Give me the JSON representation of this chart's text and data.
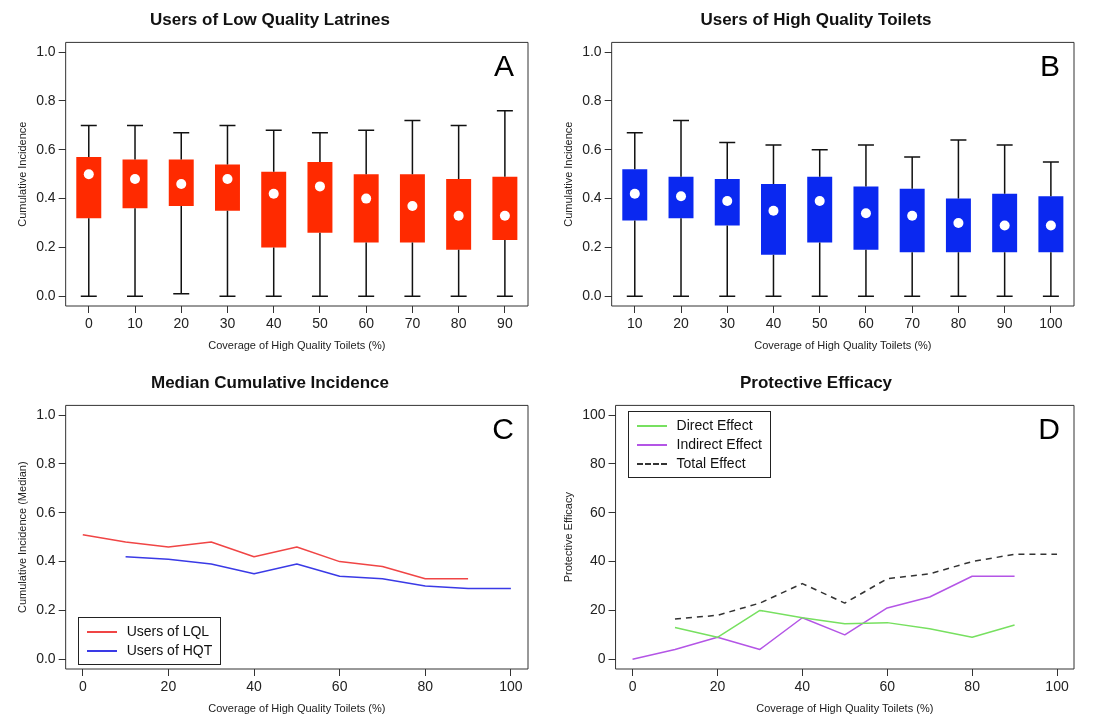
{
  "chart_data": [
    {
      "type": "box",
      "title": "Users of Low Quality Latrines",
      "xlabel": "Coverage of High Quality Toilets (%)",
      "ylabel": "Cumulative Incidence",
      "annotations": [
        "A"
      ],
      "categories": [
        "0",
        "10",
        "20",
        "30",
        "40",
        "50",
        "60",
        "70",
        "80",
        "90"
      ],
      "color": "#ff2a00",
      "grid": false,
      "legend": false,
      "ylim": [
        -0.04,
        1.04
      ],
      "yticks": [
        {
          "value": 0,
          "label": "0.0"
        },
        {
          "value": 0.2,
          "label": "0.2"
        },
        {
          "value": 0.4,
          "label": "0.4"
        },
        {
          "value": 0.6,
          "label": "0.6"
        },
        {
          "value": 0.8,
          "label": "0.8"
        },
        {
          "value": 1,
          "label": "1.0"
        }
      ],
      "boxes": [
        {
          "low": 0,
          "q1": 0.32,
          "median": 0.5,
          "q3": 0.57,
          "high": 0.7
        },
        {
          "low": 0,
          "q1": 0.36,
          "median": 0.48,
          "q3": 0.56,
          "high": 0.7
        },
        {
          "low": 0.01,
          "q1": 0.37,
          "median": 0.46,
          "q3": 0.56,
          "high": 0.67
        },
        {
          "low": 0,
          "q1": 0.35,
          "median": 0.48,
          "q3": 0.54,
          "high": 0.7
        },
        {
          "low": 0,
          "q1": 0.2,
          "median": 0.42,
          "q3": 0.51,
          "high": 0.68
        },
        {
          "low": 0,
          "q1": 0.26,
          "median": 0.45,
          "q3": 0.55,
          "high": 0.67
        },
        {
          "low": 0,
          "q1": 0.22,
          "median": 0.4,
          "q3": 0.5,
          "high": 0.68
        },
        {
          "low": 0,
          "q1": 0.22,
          "median": 0.37,
          "q3": 0.5,
          "high": 0.72
        },
        {
          "low": 0,
          "q1": 0.19,
          "median": 0.33,
          "q3": 0.48,
          "high": 0.7
        },
        {
          "low": 0,
          "q1": 0.23,
          "median": 0.33,
          "q3": 0.49,
          "high": 0.76
        }
      ]
    },
    {
      "type": "box",
      "title": "Users of High Quality Toilets",
      "xlabel": "Coverage of High Quality Toilets (%)",
      "ylabel": "Cumulative Incidence",
      "annotations": [
        "B"
      ],
      "categories": [
        "10",
        "20",
        "30",
        "40",
        "50",
        "60",
        "70",
        "80",
        "90",
        "100"
      ],
      "color": "#0a28f0",
      "grid": false,
      "legend": false,
      "ylim": [
        -0.04,
        1.04
      ],
      "yticks": [
        {
          "value": 0,
          "label": "0.0"
        },
        {
          "value": 0.2,
          "label": "0.2"
        },
        {
          "value": 0.4,
          "label": "0.4"
        },
        {
          "value": 0.6,
          "label": "0.6"
        },
        {
          "value": 0.8,
          "label": "0.8"
        },
        {
          "value": 1,
          "label": "1.0"
        }
      ],
      "boxes": [
        {
          "low": 0,
          "q1": 0.31,
          "median": 0.42,
          "q3": 0.52,
          "high": 0.67
        },
        {
          "low": 0,
          "q1": 0.32,
          "median": 0.41,
          "q3": 0.49,
          "high": 0.72
        },
        {
          "low": 0,
          "q1": 0.29,
          "median": 0.39,
          "q3": 0.48,
          "high": 0.63
        },
        {
          "low": 0,
          "q1": 0.17,
          "median": 0.35,
          "q3": 0.46,
          "high": 0.62
        },
        {
          "low": 0,
          "q1": 0.22,
          "median": 0.39,
          "q3": 0.49,
          "high": 0.6
        },
        {
          "low": 0,
          "q1": 0.19,
          "median": 0.34,
          "q3": 0.45,
          "high": 0.62
        },
        {
          "low": 0,
          "q1": 0.18,
          "median": 0.33,
          "q3": 0.44,
          "high": 0.57
        },
        {
          "low": 0,
          "q1": 0.18,
          "median": 0.3,
          "q3": 0.4,
          "high": 0.64
        },
        {
          "low": 0,
          "q1": 0.18,
          "median": 0.29,
          "q3": 0.42,
          "high": 0.62
        },
        {
          "low": 0,
          "q1": 0.18,
          "median": 0.29,
          "q3": 0.41,
          "high": 0.55
        }
      ]
    },
    {
      "type": "line",
      "title": "Median Cumulative Incidence",
      "xlabel": "Coverage of High Quality Toilets (%)",
      "ylabel": "Cumulative Incidence (Median)",
      "annotations": [
        "C"
      ],
      "grid": false,
      "legend": "bottom left",
      "marker": "none",
      "xlim": [
        -4,
        104
      ],
      "xticks": [
        0,
        20,
        40,
        60,
        80,
        100
      ],
      "ylim": [
        -0.04,
        1.04
      ],
      "yticks": [
        {
          "value": 0,
          "label": "0.0"
        },
        {
          "value": 0.2,
          "label": "0.2"
        },
        {
          "value": 0.4,
          "label": "0.4"
        },
        {
          "value": 0.6,
          "label": "0.6"
        },
        {
          "value": 0.8,
          "label": "0.8"
        },
        {
          "value": 1,
          "label": "1.0"
        }
      ],
      "series": [
        {
          "name": "Users of LQL",
          "color": "#f04545",
          "x": [
            0,
            10,
            20,
            30,
            40,
            50,
            60,
            70,
            80,
            90
          ],
          "values": [
            0.51,
            0.48,
            0.46,
            0.48,
            0.42,
            0.46,
            0.4,
            0.38,
            0.33,
            0.33
          ]
        },
        {
          "name": "Users of HQT",
          "color": "#3a3ae6",
          "x": [
            10,
            20,
            30,
            40,
            50,
            60,
            70,
            80,
            90,
            100
          ],
          "values": [
            0.42,
            0.41,
            0.39,
            0.35,
            0.39,
            0.34,
            0.33,
            0.3,
            0.29,
            0.29
          ]
        }
      ]
    },
    {
      "type": "line",
      "title": "Protective Efficacy",
      "xlabel": "Coverage of High Quality Toilets (%)",
      "ylabel": "Protective Efficacy",
      "annotations": [
        "D"
      ],
      "grid": false,
      "legend": "top left",
      "marker": "none",
      "xlim": [
        -4,
        104
      ],
      "xticks": [
        0,
        20,
        40,
        60,
        80,
        100
      ],
      "ylim": [
        -4,
        104
      ],
      "yticks": [
        0,
        20,
        40,
        60,
        80,
        100
      ],
      "series": [
        {
          "name": "Direct Effect",
          "color": "#77e060",
          "x": [
            10,
            20,
            30,
            40,
            50,
            60,
            70,
            80,
            90
          ],
          "values": [
            13,
            9,
            20,
            17,
            14.5,
            15,
            12.5,
            9,
            14
          ]
        },
        {
          "name": "Indirect Effect",
          "color": "#b455e6",
          "x": [
            0,
            10,
            20,
            30,
            40,
            50,
            60,
            70,
            80,
            90
          ],
          "values": [
            0,
            4,
            9,
            4,
            17,
            10,
            21,
            25.5,
            34,
            34
          ]
        },
        {
          "name": "Total Effect",
          "color": "#333333",
          "line_style": "dashed",
          "x": [
            10,
            20,
            30,
            40,
            50,
            60,
            70,
            80,
            90,
            100
          ],
          "values": [
            16.5,
            18,
            23,
            31,
            23,
            33,
            35,
            40,
            43,
            43
          ]
        }
      ]
    }
  ]
}
